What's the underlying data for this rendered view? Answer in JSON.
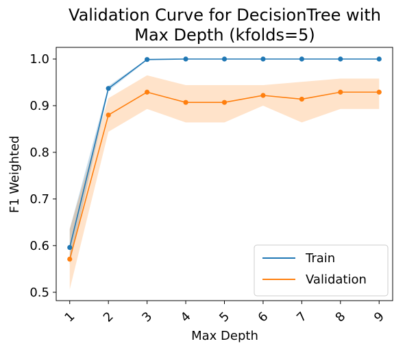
{
  "chart_data": {
    "type": "line",
    "title_lines": [
      "Validation Curve for DecisionTree with",
      "Max Depth (kfolds=5)"
    ],
    "xlabel": "Max Depth",
    "ylabel": "F1 Weighted",
    "x": [
      1,
      2,
      3,
      4,
      5,
      6,
      7,
      8,
      9
    ],
    "x_tick_labels": [
      "1",
      "2",
      "3",
      "4",
      "5",
      "6",
      "7",
      "8",
      "9"
    ],
    "y_ticks": [
      0.5,
      0.6,
      0.7,
      0.8,
      0.9,
      1.0
    ],
    "y_tick_labels": [
      "0.5",
      "0.6",
      "0.7",
      "0.8",
      "0.9",
      "1.0"
    ],
    "xlim": [
      0.65,
      9.35
    ],
    "ylim": [
      0.482,
      1.025
    ],
    "grid": false,
    "legend_position": "lower-right",
    "series": [
      {
        "name": "Train",
        "color": "#1f77b4",
        "values": [
          0.596,
          0.937,
          0.999,
          1.0,
          1.0,
          1.0,
          1.0,
          1.0,
          1.0
        ],
        "band_lower": [
          0.56,
          0.932,
          0.997,
          1.0,
          1.0,
          1.0,
          1.0,
          1.0,
          1.0
        ],
        "band_upper": [
          0.635,
          0.942,
          1.0,
          1.0,
          1.0,
          1.0,
          1.0,
          1.0,
          1.0
        ]
      },
      {
        "name": "Validation",
        "color": "#ff7f0e",
        "values": [
          0.571,
          0.88,
          0.929,
          0.907,
          0.907,
          0.922,
          0.914,
          0.929,
          0.929
        ],
        "band_lower": [
          0.506,
          0.844,
          0.893,
          0.864,
          0.864,
          0.9,
          0.864,
          0.893,
          0.893
        ],
        "band_upper": [
          0.636,
          0.916,
          0.965,
          0.944,
          0.944,
          0.944,
          0.951,
          0.958,
          0.958
        ]
      }
    ]
  }
}
